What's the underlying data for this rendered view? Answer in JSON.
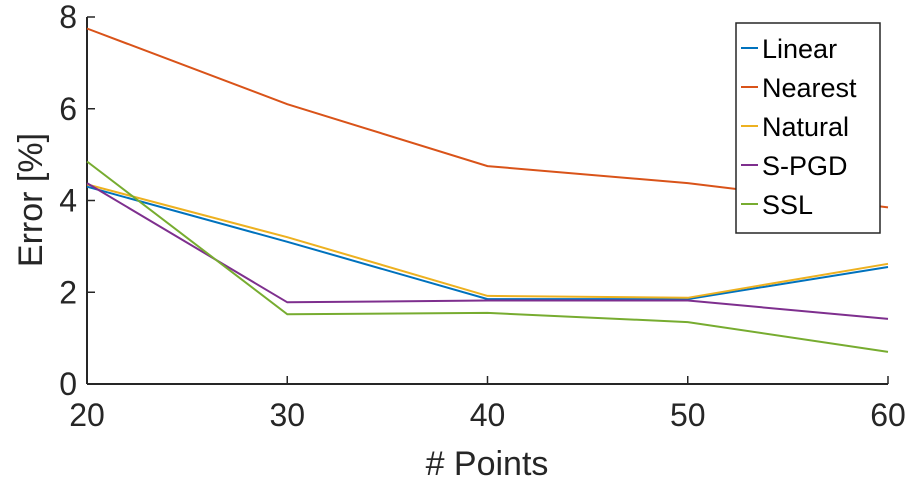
{
  "chart_data": {
    "type": "line",
    "title": "",
    "xlabel": "# Points",
    "ylabel": "Error [%]",
    "x": [
      20,
      30,
      40,
      50,
      60
    ],
    "xlim": [
      20,
      60
    ],
    "ylim": [
      0,
      8
    ],
    "xticks": [
      "20",
      "30",
      "40",
      "50",
      "60"
    ],
    "yticks": [
      "0",
      "2",
      "4",
      "6",
      "8"
    ],
    "grid": false,
    "legend_position": "top-right",
    "series": [
      {
        "name": "Linear",
        "color": "#0072BD",
        "values": [
          4.3,
          3.1,
          1.85,
          1.85,
          2.55
        ]
      },
      {
        "name": "Nearest",
        "color": "#D95319",
        "values": [
          7.75,
          6.1,
          4.75,
          4.38,
          3.85
        ]
      },
      {
        "name": "Natural",
        "color": "#EDB120",
        "values": [
          4.35,
          3.2,
          1.92,
          1.88,
          2.62
        ]
      },
      {
        "name": "S-PGD",
        "color": "#7E2F8E",
        "values": [
          4.38,
          1.78,
          1.82,
          1.82,
          1.42
        ]
      },
      {
        "name": "SSL",
        "color": "#77AC30",
        "values": [
          4.85,
          1.52,
          1.55,
          1.35,
          0.7
        ]
      }
    ]
  }
}
